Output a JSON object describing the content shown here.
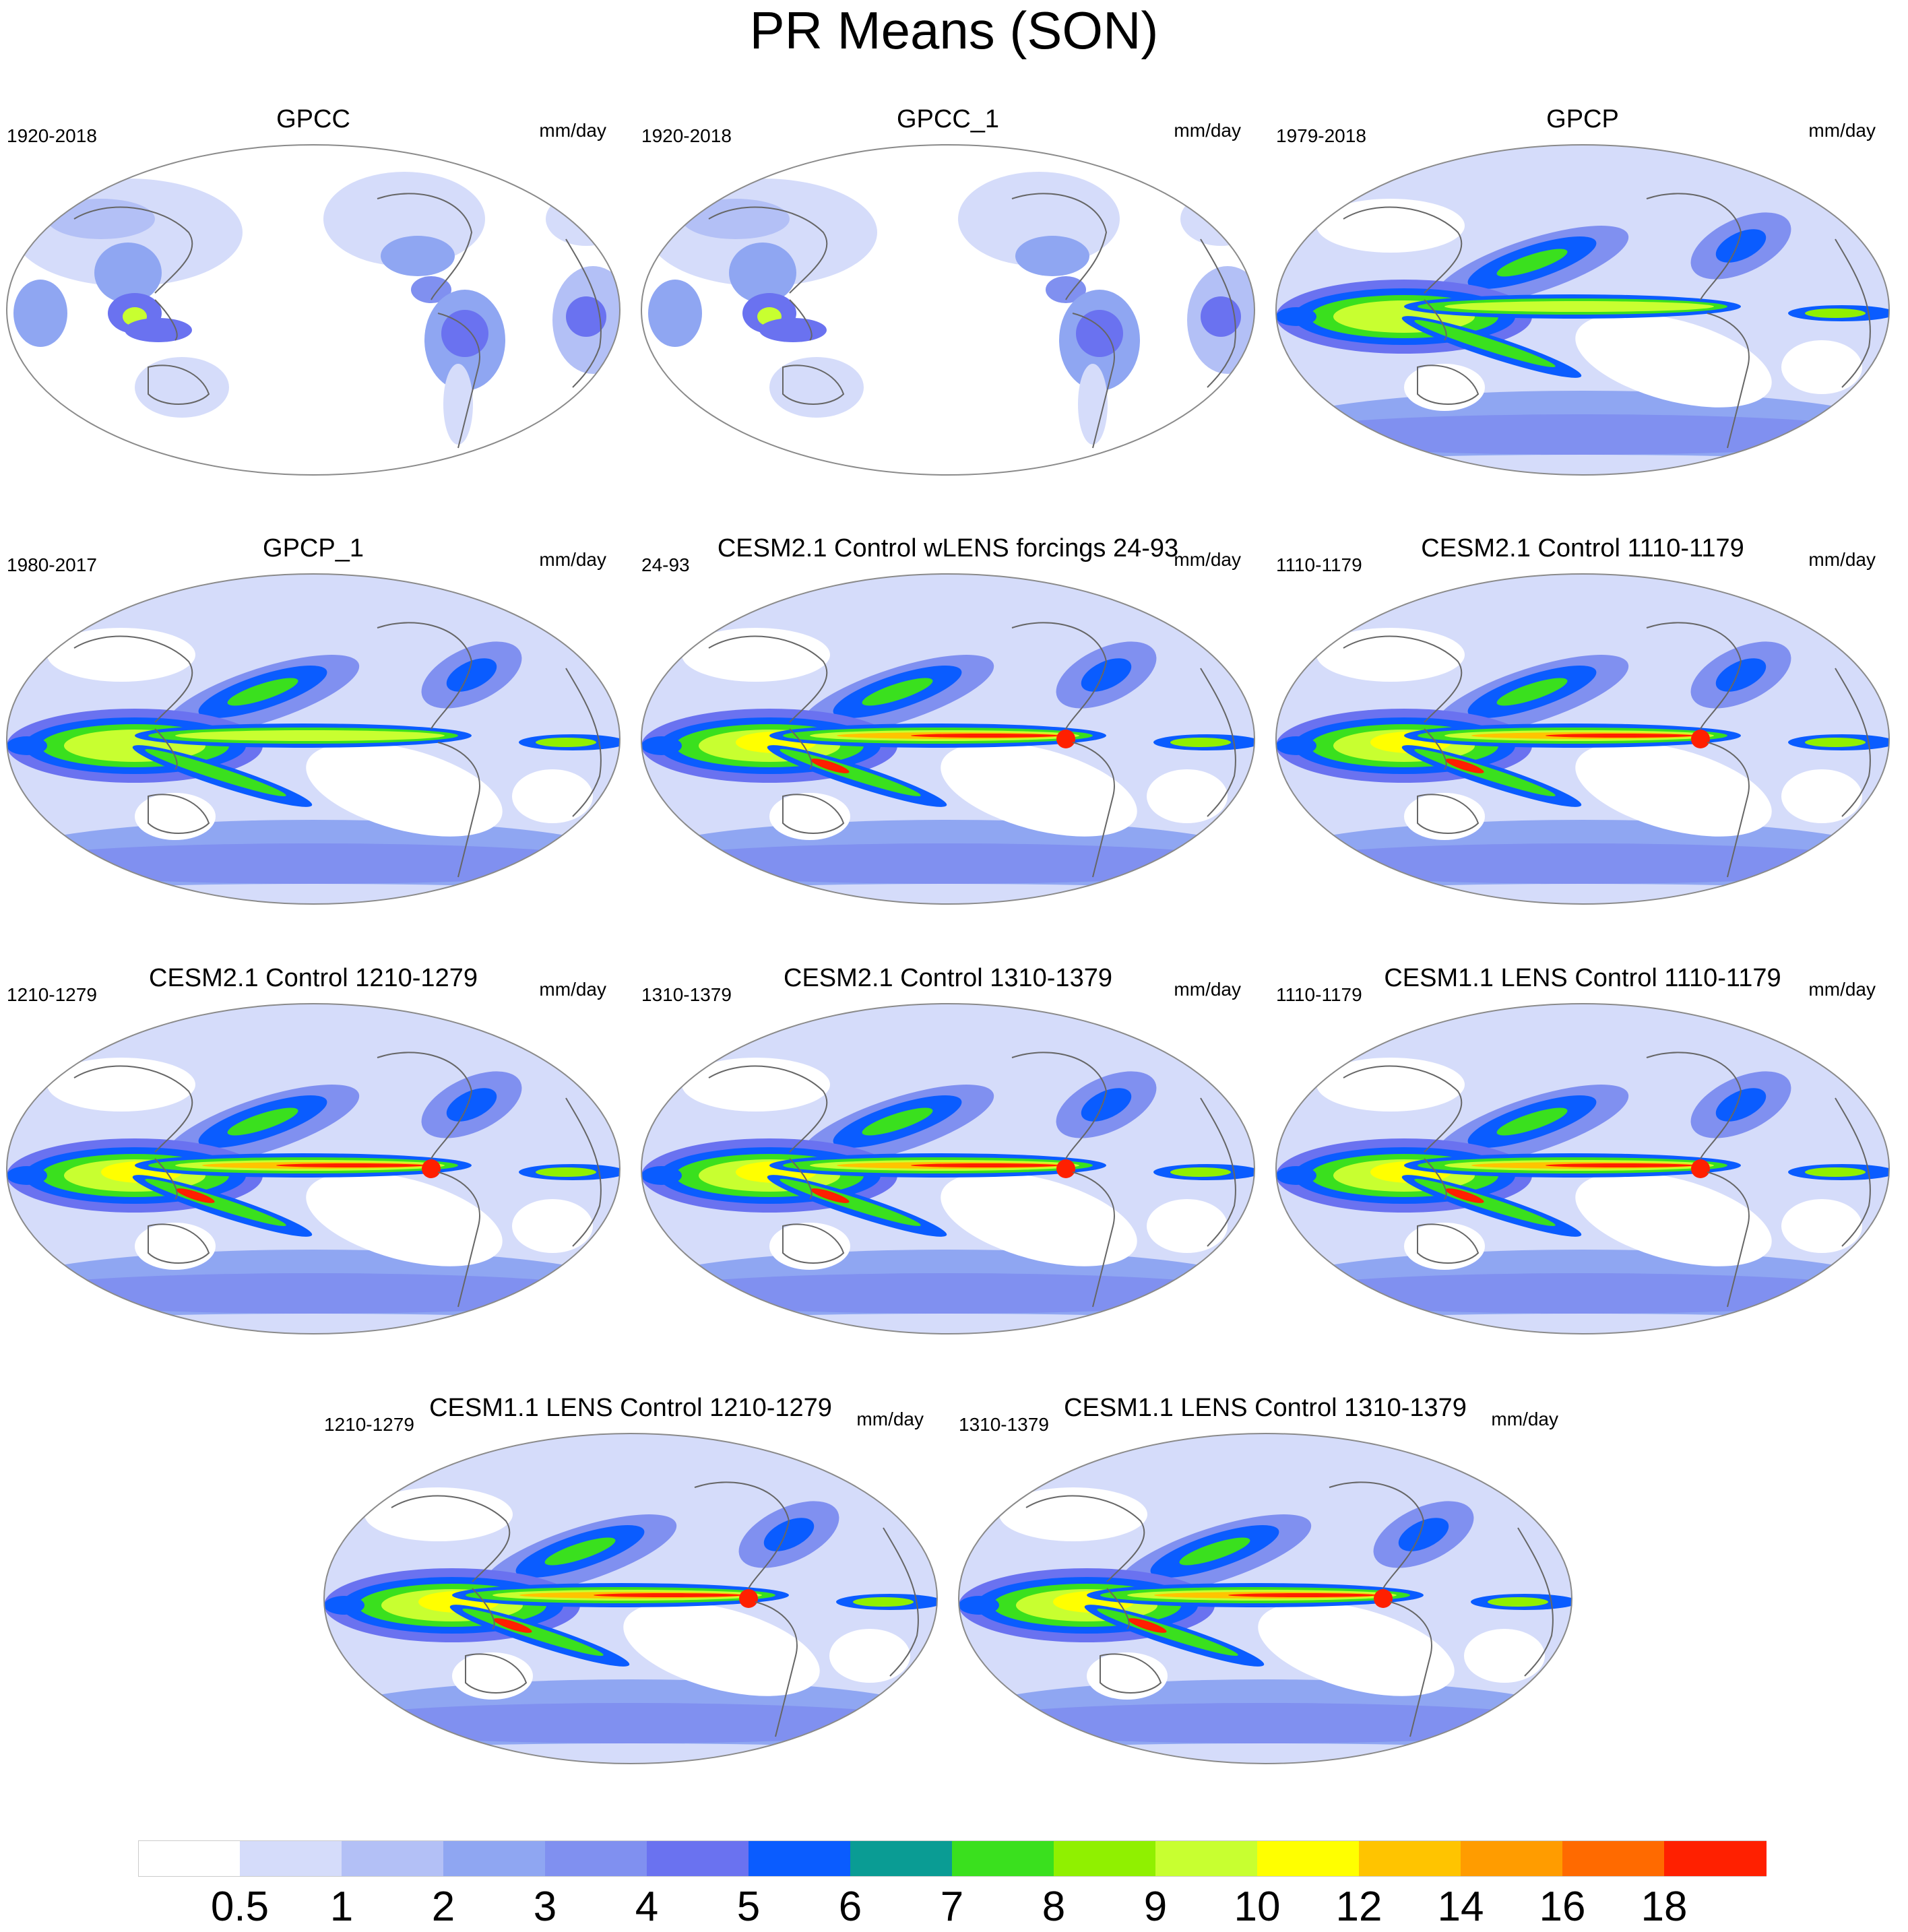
{
  "title": "PR Means (SON)",
  "units": "mm/day",
  "panels": [
    {
      "title": "GPCC",
      "period": "1920-2018",
      "kind": "gauge"
    },
    {
      "title": "GPCC_1",
      "period": "1920-2018",
      "kind": "gauge"
    },
    {
      "title": "GPCP",
      "period": "1979-2018",
      "kind": "obs"
    },
    {
      "title": "GPCP_1",
      "period": "1980-2017",
      "kind": "obs"
    },
    {
      "title": "CESM2.1 Control wLENS forcings 24-93",
      "period": "24-93",
      "kind": "model"
    },
    {
      "title": "CESM2.1 Control 1110-1179",
      "period": "1110-1179",
      "kind": "model"
    },
    {
      "title": "CESM2.1 Control 1210-1279",
      "period": "1210-1279",
      "kind": "model"
    },
    {
      "title": "CESM2.1 Control 1310-1379",
      "period": "1310-1379",
      "kind": "model"
    },
    {
      "title": "CESM1.1 LENS Control 1110-1179",
      "period": "1110-1179",
      "kind": "model"
    },
    {
      "title": "CESM1.1 LENS Control 1210-1279",
      "period": "1210-1279",
      "kind": "model"
    },
    {
      "title": "CESM1.1 LENS Control 1310-1379",
      "period": "1310-1379",
      "kind": "model"
    }
  ],
  "colorbar": {
    "labels": [
      "0.5",
      "1",
      "2",
      "3",
      "4",
      "5",
      "6",
      "7",
      "8",
      "9",
      "10",
      "12",
      "14",
      "16",
      "18"
    ],
    "colors": [
      "#ffffff",
      "#d5dcfa",
      "#b3c0f6",
      "#8fa6f2",
      "#8090f0",
      "#6a72f0",
      "#0a5cff",
      "#0a9c94",
      "#3ae01e",
      "#90f000",
      "#c8ff30",
      "#ffff00",
      "#ffc400",
      "#ff9c00",
      "#ff6a00",
      "#ff2000"
    ]
  }
}
